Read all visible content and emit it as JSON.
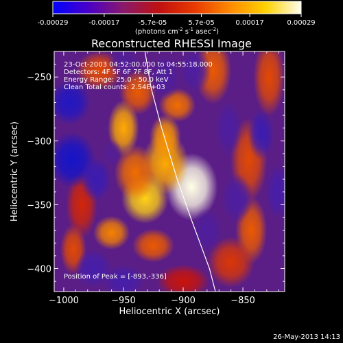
{
  "colorbar": {
    "tick_labels": [
      "-0.00029",
      "-0.00017",
      "-5.7e-05",
      "5.7e-05",
      "0.00017",
      "0.00029"
    ],
    "tick_values": [
      -0.00029,
      -0.00017,
      -5.7e-05,
      5.7e-05,
      0.00017,
      0.00029
    ],
    "range": [
      -0.00029,
      0.00029
    ],
    "unit_text": "(photons cm",
    "unit_exp1": "-2",
    "unit_mid": " s",
    "unit_exp2": "-1",
    "unit_mid2": " asec",
    "unit_exp3": "-2",
    "unit_close": ")",
    "colors": [
      "#0000ff",
      "#4a00c8",
      "#8a1a6a",
      "#c01010",
      "#e83a00",
      "#ff8a00",
      "#ffd200",
      "#fffff0"
    ]
  },
  "chart_data": {
    "type": "heatmap",
    "title": "Reconstructed RHESSI Image",
    "xlabel": "Heliocentric X (arcsec)",
    "ylabel": "Heliocentric Y (arcsec)",
    "xlim": [
      -1008,
      -815
    ],
    "ylim": [
      -418,
      -230
    ],
    "xticks": [
      -1000,
      -950,
      -900,
      -850
    ],
    "yticks": [
      -250,
      -300,
      -350,
      -400
    ],
    "xtick_labels": [
      "−1000",
      "−950",
      "−900",
      "−850"
    ],
    "ytick_labels": [
      "−250",
      "−300",
      "−350",
      "−400"
    ],
    "info_lines": [
      "23-Oct-2003 04:52:00.000 to 04:55:18.000",
      "Detectors: 4F 5F 6F 7F 8F, Att 1",
      "Energy Range: 25.0 - 50.0 keV",
      "Clean     Total counts: 2.54E+03"
    ],
    "peak_label": "Position of Peak = [-893,-336]",
    "peak": [
      -893,
      -336
    ],
    "blobs": [
      {
        "x": -893,
        "y": -336,
        "sx": 10,
        "sy": 12,
        "v": 1.0
      },
      {
        "x": -915,
        "y": -318,
        "sx": 9,
        "sy": 11,
        "v": 0.75
      },
      {
        "x": -932,
        "y": -345,
        "sx": 9,
        "sy": 9,
        "v": 0.85
      },
      {
        "x": -940,
        "y": -325,
        "sx": 8,
        "sy": 10,
        "v": 0.6
      },
      {
        "x": -950,
        "y": -290,
        "sx": 6,
        "sy": 10,
        "v": 0.75
      },
      {
        "x": -915,
        "y": -297,
        "sx": 6,
        "sy": 8,
        "v": 0.7
      },
      {
        "x": -938,
        "y": -262,
        "sx": 7,
        "sy": 8,
        "v": 0.55
      },
      {
        "x": -905,
        "y": -272,
        "sx": 7,
        "sy": 6,
        "v": 0.6
      },
      {
        "x": -970,
        "y": -245,
        "sx": 9,
        "sy": 7,
        "v": 0.5
      },
      {
        "x": -875,
        "y": -245,
        "sx": 7,
        "sy": 12,
        "v": 0.55
      },
      {
        "x": -828,
        "y": -250,
        "sx": 6,
        "sy": 14,
        "v": 0.5
      },
      {
        "x": -845,
        "y": -315,
        "sx": 7,
        "sy": 15,
        "v": 0.5
      },
      {
        "x": -843,
        "y": -370,
        "sx": 6,
        "sy": 12,
        "v": 0.55
      },
      {
        "x": -860,
        "y": -395,
        "sx": 9,
        "sy": 9,
        "v": 0.45
      },
      {
        "x": -960,
        "y": -372,
        "sx": 7,
        "sy": 6,
        "v": 0.65
      },
      {
        "x": -925,
        "y": -382,
        "sx": 8,
        "sy": 6,
        "v": 0.55
      },
      {
        "x": -985,
        "y": -350,
        "sx": 6,
        "sy": 12,
        "v": 0.4
      },
      {
        "x": -992,
        "y": -385,
        "sx": 5,
        "sy": 9,
        "v": 0.5
      },
      {
        "x": -900,
        "y": -410,
        "sx": 10,
        "sy": 6,
        "v": 0.35
      },
      {
        "x": -995,
        "y": -270,
        "sx": 8,
        "sy": 8,
        "v": -0.9
      },
      {
        "x": -993,
        "y": -315,
        "sx": 9,
        "sy": 10,
        "v": -1.0
      },
      {
        "x": -973,
        "y": -330,
        "sx": 6,
        "sy": 8,
        "v": -0.7
      },
      {
        "x": -975,
        "y": -400,
        "sx": 7,
        "sy": 7,
        "v": -0.6
      },
      {
        "x": -950,
        "y": -410,
        "sx": 8,
        "sy": 6,
        "v": -0.6
      },
      {
        "x": -890,
        "y": -245,
        "sx": 6,
        "sy": 8,
        "v": -0.5
      },
      {
        "x": -862,
        "y": -290,
        "sx": 5,
        "sy": 10,
        "v": -0.5
      },
      {
        "x": -835,
        "y": -295,
        "sx": 5,
        "sy": 9,
        "v": -0.7
      },
      {
        "x": -855,
        "y": -345,
        "sx": 6,
        "sy": 9,
        "v": -0.5
      },
      {
        "x": -820,
        "y": -340,
        "sx": 5,
        "sy": 10,
        "v": -0.6
      },
      {
        "x": -880,
        "y": -370,
        "sx": 6,
        "sy": 8,
        "v": -0.45
      },
      {
        "x": -915,
        "y": -250,
        "sx": 6,
        "sy": 8,
        "v": -0.45
      },
      {
        "x": -950,
        "y": -238,
        "sx": 6,
        "sy": 6,
        "v": -0.4
      },
      {
        "x": -960,
        "y": -310,
        "sx": 4,
        "sy": 5,
        "v": -0.35
      }
    ],
    "limb_line": [
      [
        -932,
        -230
      ],
      [
        -927,
        -258
      ],
      [
        -918,
        -290
      ],
      [
        -905,
        -330
      ],
      [
        -893,
        -362
      ],
      [
        -878,
        -400
      ],
      [
        -873,
        -418
      ]
    ],
    "timestamp": "26-May-2013 14:13"
  }
}
